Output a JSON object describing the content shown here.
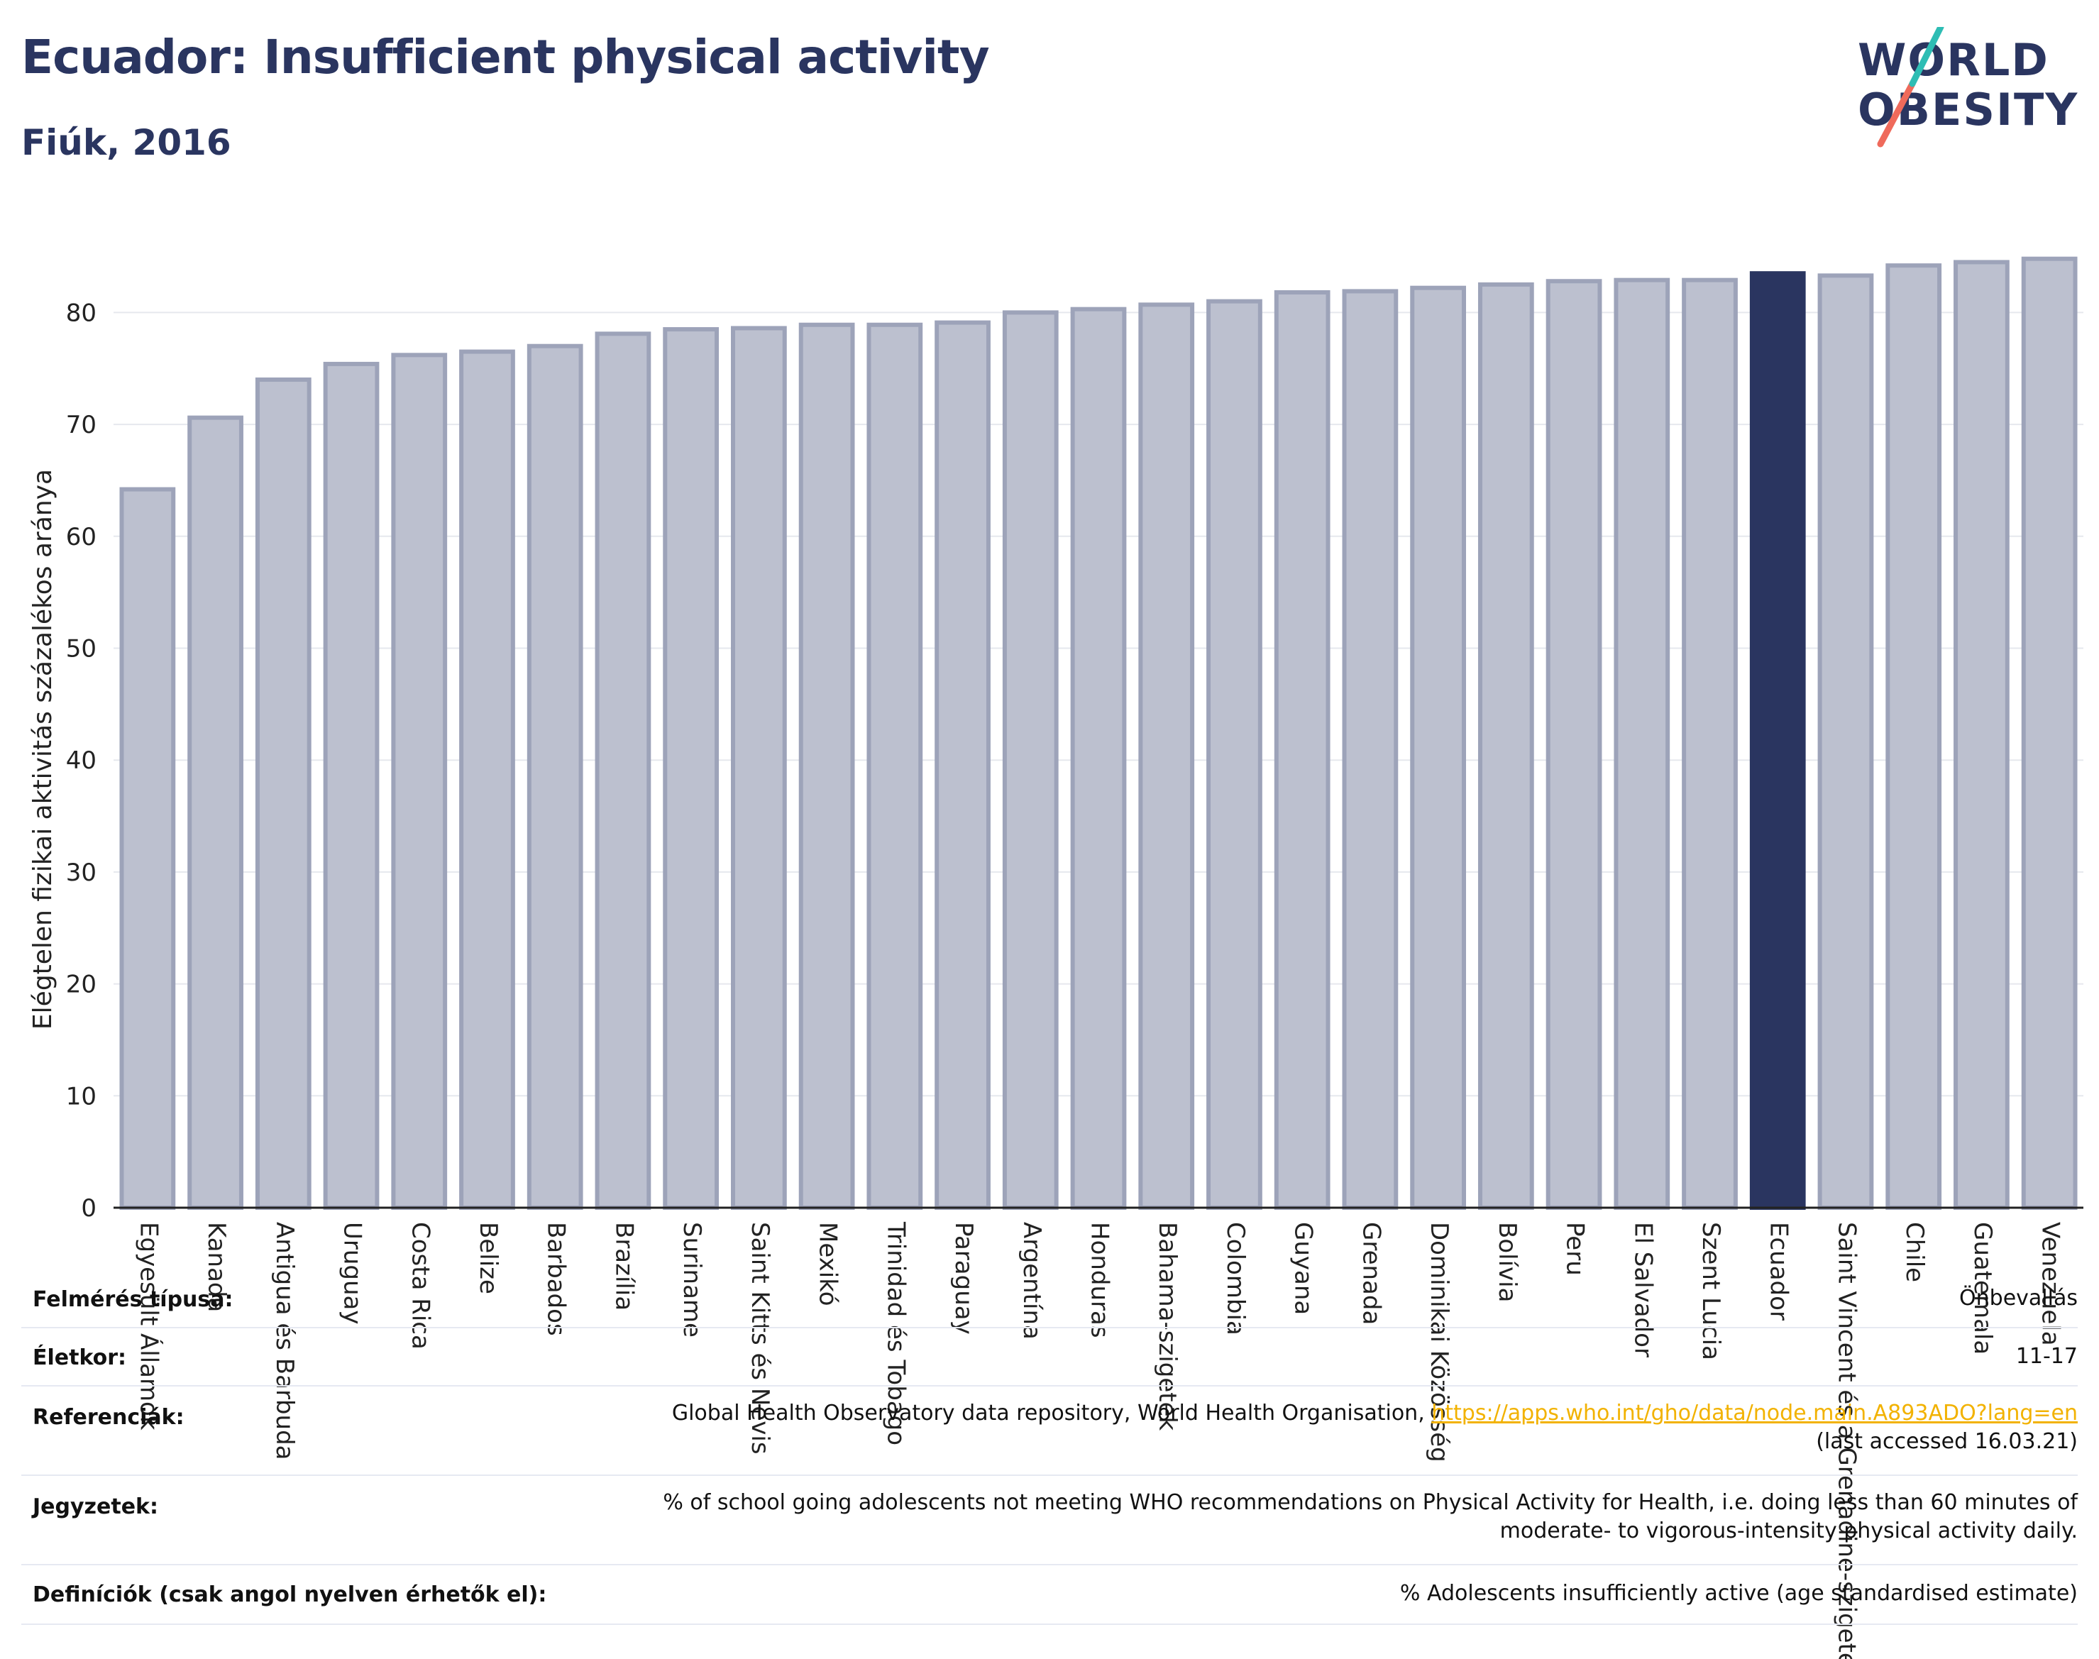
{
  "header": {
    "title": "Ecuador: Insufficient physical activity",
    "subtitle": "Fiúk, 2016"
  },
  "logo": {
    "line1": "WORLD",
    "line2": "OBESITY",
    "accent_teal": "#2ebdb4",
    "accent_red": "#ef6a5b"
  },
  "colors": {
    "bar": "#bcc0cf",
    "bar_edge": "#9da3b9",
    "highlight": "#2a3560"
  },
  "chart_data": {
    "type": "bar",
    "highlight": "Ecuador",
    "categories": [
      "Egyesült Államok",
      "Kanada",
      "Antigua és Barbuda",
      "Uruguay",
      "Costa Rica",
      "Belize",
      "Barbados",
      "Brazília",
      "Suriname",
      "Saint Kitts és Nevis",
      "Mexikó",
      "Trinidad és Tobago",
      "Paraguay",
      "Argentína",
      "Honduras",
      "Bahama-szigetek",
      "Colombia",
      "Guyana",
      "Grenada",
      "Dominikai Közösség",
      "Bolívia",
      "Peru",
      "El Salvador",
      "Szent Lucia",
      "Ecuador",
      "Saint Vincent és a Grenadine-szigetek",
      "Chile",
      "Guatemala",
      "Venezuela"
    ],
    "values": [
      64.2,
      70.6,
      74.0,
      75.4,
      76.2,
      76.5,
      77.0,
      78.1,
      78.5,
      78.6,
      78.9,
      78.9,
      79.1,
      80.0,
      80.3,
      80.7,
      81.0,
      81.8,
      81.9,
      82.2,
      82.5,
      82.8,
      82.9,
      82.9,
      83.5,
      83.3,
      84.2,
      84.5,
      84.8
    ],
    "title": "",
    "xlabel": "",
    "ylabel": "Elégtelen fizikai aktivitás százalékos aránya",
    "yticks": [
      0,
      10,
      20,
      30,
      40,
      50,
      60,
      70,
      80
    ],
    "ylim": [
      0,
      87
    ]
  },
  "footer": [
    {
      "label": "Felmérés típusa:",
      "value": "Önbevallás"
    },
    {
      "label": "Életkor:",
      "value": "11-17"
    },
    {
      "label": "Referenciák:",
      "value_before": "Global Health Observatory data repository, World Health Organisation, ",
      "link": "https://apps.who.int/gho/data/node.main.A893ADO?lang=en",
      "value_after": "(last accessed 16.03.21)"
    },
    {
      "label": "Jegyzetek:",
      "value": "% of school going adolescents not meeting WHO recommendations on Physical Activity for Health, i.e. doing less than 60 minutes of",
      "value2": "moderate- to vigorous-intensity physical activity daily."
    },
    {
      "label": "Definíciók (csak angol nyelven érhetők el):",
      "value": "% Adolescents insufficiently active (age standardised estimate)"
    }
  ]
}
